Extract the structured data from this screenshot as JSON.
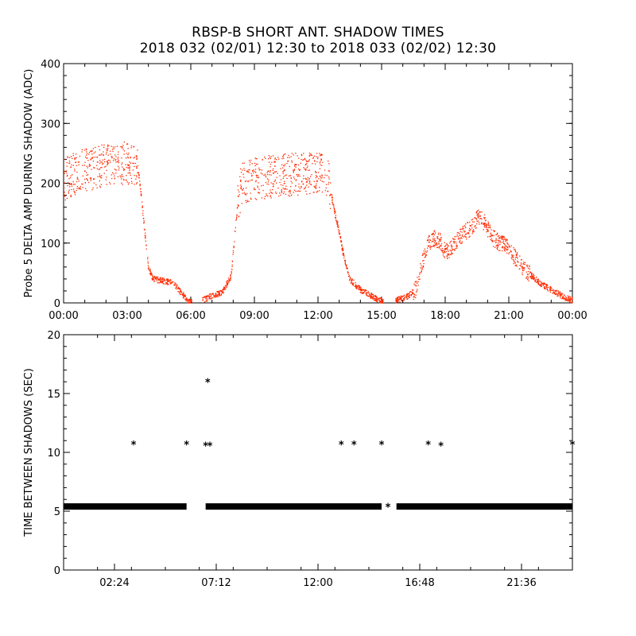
{
  "chart": {
    "title": "RBSP-B SHORT ANT. SHADOW TIMES",
    "subtitle": "2018 032 (02/01) 12:30 to 2018 033 (02/02) 12:30"
  },
  "chart_data": [
    {
      "type": "scatter",
      "ylabel": "Probe 5 DELTA AMP DURING SHADOW (ADC)",
      "xlabel": "",
      "x_unit": "hours",
      "xlim": [
        0,
        24
      ],
      "ylim": [
        0,
        400
      ],
      "xticks": [
        0,
        3,
        6,
        9,
        12,
        15,
        18,
        21,
        24
      ],
      "xtick_labels": [
        "00:00",
        "03:00",
        "06:00",
        "09:00",
        "12:00",
        "15:00",
        "18:00",
        "21:00",
        "00:00"
      ],
      "yticks": [
        0,
        100,
        200,
        300,
        400
      ],
      "ytick_labels": [
        "0",
        "100",
        "200",
        "300",
        "400"
      ],
      "marker_color": "#ff2a00",
      "series": [
        {
          "x": [
            0.0,
            0.5,
            1.0,
            1.5,
            2.0,
            2.5,
            3.0,
            3.5,
            3.6,
            3.8,
            4.0,
            4.2,
            4.5,
            5.0,
            5.3,
            5.6,
            5.9,
            6.6,
            7.0,
            7.5,
            7.9,
            8.2,
            8.4,
            9.0,
            10.0,
            11.0,
            12.0,
            12.5,
            12.8,
            13.0,
            13.2,
            13.5,
            14.0,
            14.5,
            15.0,
            15.7,
            16.2,
            16.6,
            16.9,
            17.2,
            17.5,
            17.8,
            18.0,
            18.3,
            18.7,
            19.0,
            19.3,
            19.6,
            19.9,
            20.2,
            20.5,
            20.9,
            21.2,
            21.6,
            22.0,
            22.5,
            23.0,
            23.5,
            24.0
          ],
          "y": [
            205,
            215,
            222,
            225,
            230,
            232,
            235,
            228,
            200,
            130,
            60,
            40,
            38,
            35,
            28,
            15,
            2,
            5,
            12,
            18,
            45,
            160,
            200,
            208,
            212,
            215,
            218,
            205,
            150,
            120,
            80,
            40,
            22,
            12,
            3,
            5,
            10,
            22,
            65,
            100,
            108,
            102,
            85,
            92,
            110,
            120,
            128,
            145,
            132,
            110,
            102,
            95,
            80,
            62,
            48,
            32,
            22,
            12,
            4
          ]
        }
      ]
    },
    {
      "type": "scatter",
      "ylabel": "TIME BETWEEN SHADOWS (SEC)",
      "xlabel": "",
      "x_unit": "hours",
      "xlim": [
        0,
        24
      ],
      "ylim": [
        0,
        20
      ],
      "xticks": [
        2.4,
        7.2,
        12.0,
        16.8,
        21.6
      ],
      "xtick_labels": [
        "02:24",
        "07:12",
        "12:00",
        "16:48",
        "21:36"
      ],
      "yticks": [
        0,
        5,
        10,
        15,
        20
      ],
      "ytick_labels": [
        "0",
        "5",
        "10",
        "15",
        "20"
      ],
      "marker": "*",
      "marker_color": "#000000",
      "baseline": {
        "y": 5.4,
        "segments": [
          [
            0.0,
            5.8
          ],
          [
            6.7,
            15.0
          ],
          [
            15.7,
            24.0
          ]
        ]
      },
      "series": [
        {
          "x": [
            3.3,
            5.8,
            6.7,
            6.8,
            6.9,
            13.1,
            13.7,
            15.0,
            15.3,
            17.2,
            17.8,
            24.0
          ],
          "y": [
            10.8,
            10.8,
            10.7,
            16.1,
            10.7,
            10.8,
            10.8,
            10.8,
            5.5,
            10.8,
            10.7,
            10.8
          ]
        }
      ]
    }
  ]
}
